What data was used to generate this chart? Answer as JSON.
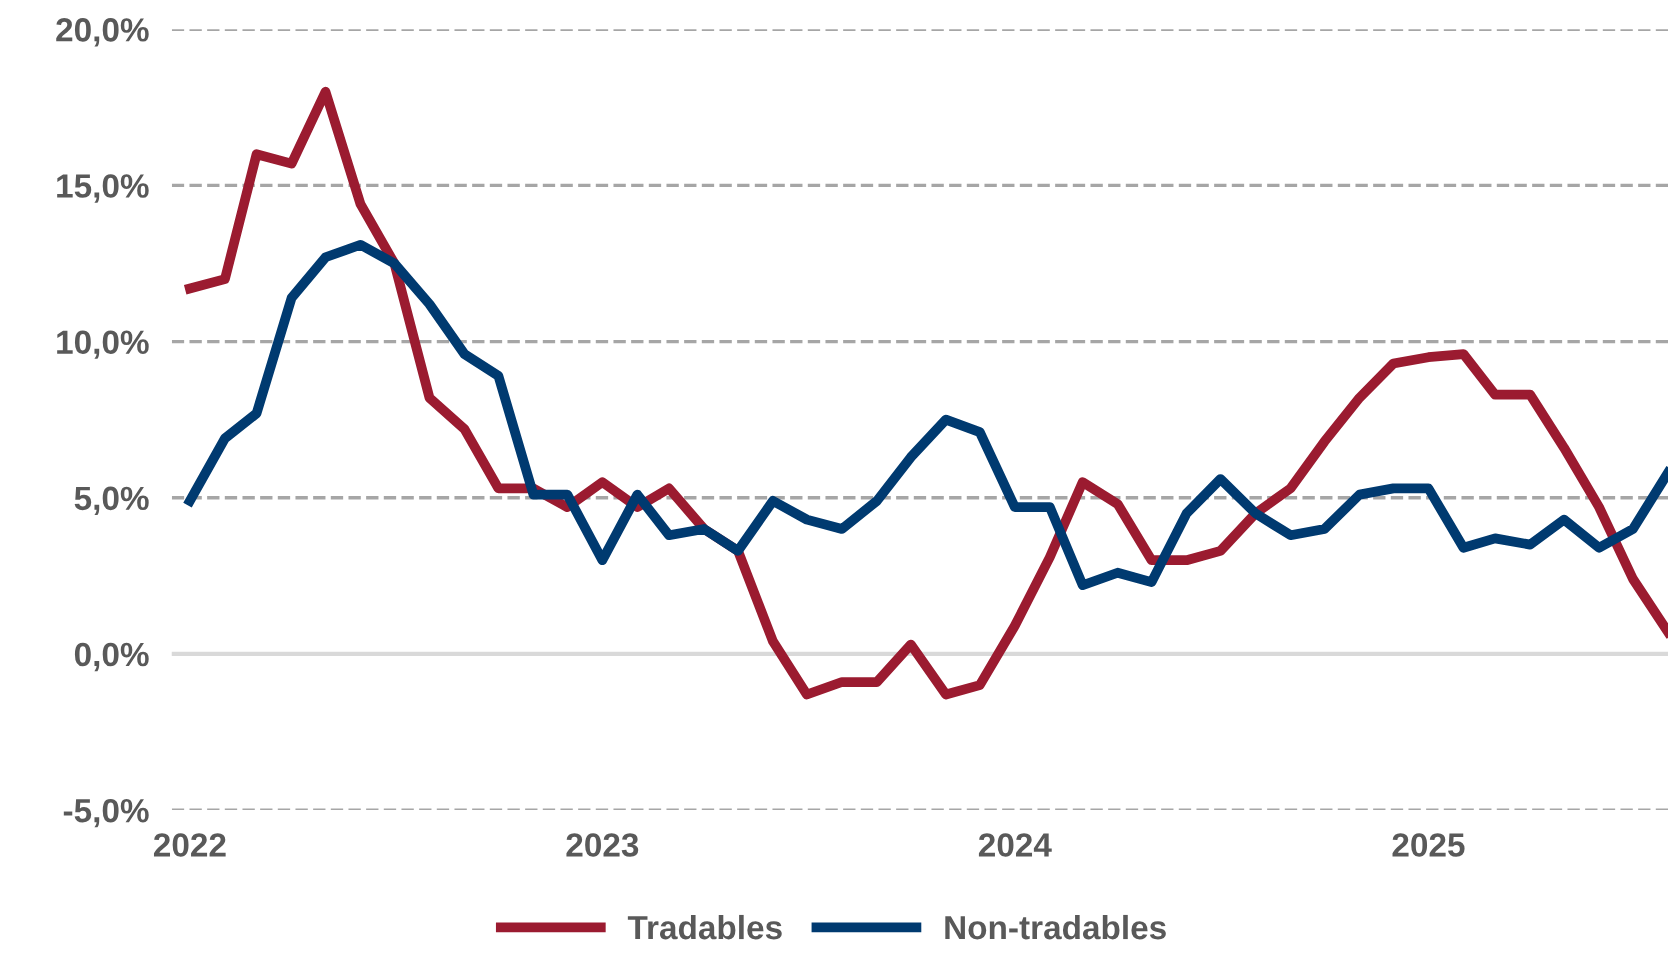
{
  "chart_data": {
    "type": "line",
    "x": [
      "2022-01",
      "2022-02",
      "2022-03",
      "2022-04",
      "2022-05",
      "2022-06",
      "2022-07",
      "2022-08",
      "2022-09",
      "2022-10",
      "2022-11",
      "2022-12",
      "2023-01",
      "2023-02",
      "2023-03",
      "2023-04",
      "2023-05",
      "2023-06",
      "2023-07",
      "2023-08",
      "2023-09",
      "2023-10",
      "2023-11",
      "2023-12",
      "2024-01",
      "2024-02",
      "2024-03",
      "2024-04",
      "2024-05",
      "2024-06",
      "2024-07",
      "2024-08",
      "2024-09",
      "2024-10",
      "2024-11",
      "2024-12",
      "2025-01",
      "2025-02",
      "2025-03",
      "2025-04",
      "2025-05",
      "2025-06",
      "2025-07",
      "2025-08"
    ],
    "series": [
      {
        "name": "Tradables",
        "color": "#9b1b30",
        "values": [
          11.7,
          12.0,
          16.0,
          15.7,
          18.0,
          14.4,
          12.5,
          8.2,
          7.2,
          5.3,
          5.3,
          4.7,
          5.5,
          4.7,
          5.3,
          4.0,
          3.3,
          0.4,
          -1.3,
          -0.9,
          -0.9,
          0.3,
          -1.3,
          -1.0,
          0.9,
          3.1,
          5.5,
          4.8,
          3.0,
          3.0,
          3.3,
          4.5,
          5.3,
          6.8,
          8.2,
          9.3,
          9.5,
          9.6,
          8.3,
          8.3,
          6.6,
          4.7,
          2.4,
          0.7
        ]
      },
      {
        "name": "Non-tradables",
        "color": "#003a70",
        "values": [
          4.9,
          6.9,
          7.7,
          11.4,
          12.7,
          13.1,
          12.5,
          11.2,
          9.6,
          8.9,
          5.1,
          5.1,
          3.0,
          5.1,
          3.8,
          4.0,
          3.3,
          4.9,
          4.3,
          4.0,
          4.9,
          6.3,
          7.5,
          7.1,
          4.7,
          4.7,
          2.2,
          2.6,
          2.3,
          4.5,
          5.6,
          4.5,
          3.8,
          4.0,
          5.1,
          5.3,
          5.3,
          3.4,
          3.7,
          3.5,
          4.3,
          3.4,
          4.0,
          5.8
        ]
      }
    ],
    "xlim": [
      "2021-12-16",
      "2025-08"
    ],
    "xticks": [
      {
        "value": "2022-01",
        "label": "2022"
      },
      {
        "value": "2023-01",
        "label": "2023"
      },
      {
        "value": "2024-01",
        "label": "2024"
      },
      {
        "value": "2025-01",
        "label": "2025"
      }
    ],
    "ylim": [
      -5,
      20
    ],
    "yticks": [
      {
        "value": -5,
        "label": "-5,0%"
      },
      {
        "value": 0,
        "label": "0,0%"
      },
      {
        "value": 5,
        "label": "5,0%"
      },
      {
        "value": 10,
        "label": "10,0%"
      },
      {
        "value": 15,
        "label": "15,0%"
      },
      {
        "value": 20,
        "label": "20,0%"
      }
    ],
    "ref_lines": [
      {
        "axis": "y",
        "value": 0,
        "color": "#d9d9d9",
        "line_style": "solid"
      }
    ],
    "grid": "y",
    "line_style": "solid",
    "marker": "none",
    "legend": "bottom"
  }
}
